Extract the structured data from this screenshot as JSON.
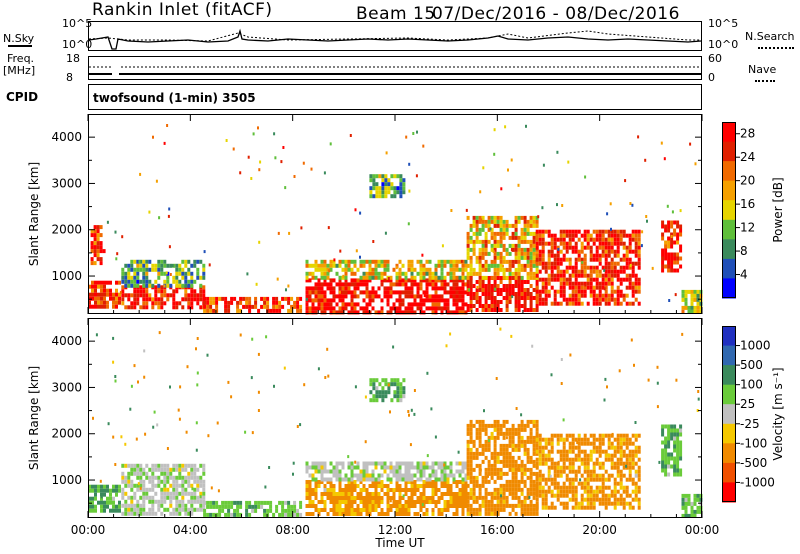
{
  "header": {
    "site": "Rankin Inlet (fitACF)",
    "beam": "Beam 15",
    "dates": "07/Dec/2016 - 08/Dec/2016"
  },
  "noise_panel": {
    "left_label": "N.Sky",
    "right_label": "N.Search",
    "left_ticks": [
      "10^5",
      "10^0"
    ],
    "right_ticks": [
      "10^5",
      "10^0"
    ]
  },
  "freq_panel": {
    "left_label_top": "Freq.",
    "left_label_unit": "[MHz]",
    "right_label": "Nave",
    "left_ticks": [
      "18",
      "8"
    ],
    "right_ticks": [
      "60",
      "0"
    ]
  },
  "cpid": {
    "label": "CPID",
    "program": "twofsound (1-min) 3505"
  },
  "colors": {
    "power_scale": [
      "#0000ff",
      "#1f4fb8",
      "#3a8a5c",
      "#5fbf3a",
      "#e6d400",
      "#f5a000",
      "#f06a00",
      "#e02000",
      "#ff0000"
    ],
    "velocity_scale": [
      "#2030c0",
      "#3068b0",
      "#3a8a5c",
      "#6acb3a",
      "#c0c0c0",
      "#f5c800",
      "#f08a00",
      "#f05000",
      "#ff0000"
    ]
  },
  "chart_data": [
    {
      "type": "heatmap",
      "name": "power",
      "ylabel": "Slant Range [km]",
      "xlabel": "",
      "xticks": [
        "00:00",
        "04:00",
        "08:00",
        "12:00",
        "16:00",
        "20:00",
        "00:00"
      ],
      "yticks": [
        1000,
        2000,
        3000,
        4000
      ],
      "ylim": [
        180,
        4500
      ],
      "xlim": [
        "00:00",
        "24:00"
      ],
      "colorbar": {
        "label": "Power [dB]",
        "ticks": [
          4,
          8,
          12,
          16,
          20,
          24,
          28
        ],
        "range": [
          0,
          30
        ]
      },
      "regions": [
        {
          "t0": 0.0,
          "t1": 1.2,
          "r0": 350,
          "r1": 900,
          "v": 26
        },
        {
          "t0": 0.1,
          "t1": 0.6,
          "r0": 1300,
          "r1": 2100,
          "v": 24
        },
        {
          "t0": 1.3,
          "t1": 4.5,
          "r0": 300,
          "r1": 800,
          "v": 26
        },
        {
          "t0": 1.3,
          "t1": 4.5,
          "r0": 800,
          "r1": 1350,
          "v": 10
        },
        {
          "t0": 4.5,
          "t1": 8.3,
          "r0": 250,
          "r1": 550,
          "v": 24
        },
        {
          "t0": 8.5,
          "t1": 14.8,
          "r0": 250,
          "r1": 950,
          "v": 28
        },
        {
          "t0": 8.5,
          "t1": 14.8,
          "r0": 950,
          "r1": 1350,
          "v": 16
        },
        {
          "t0": 11.0,
          "t1": 12.3,
          "r0": 2750,
          "r1": 3200,
          "v": 10
        },
        {
          "t0": 14.8,
          "t1": 17.5,
          "r0": 300,
          "r1": 1000,
          "v": 28
        },
        {
          "t0": 14.8,
          "t1": 17.5,
          "r0": 1000,
          "r1": 2300,
          "v": 18
        },
        {
          "t0": 17.5,
          "t1": 21.6,
          "r0": 400,
          "r1": 2000,
          "v": 26
        },
        {
          "t0": 22.4,
          "t1": 23.2,
          "r0": 1100,
          "r1": 2200,
          "v": 26
        },
        {
          "t0": 23.2,
          "t1": 24.0,
          "r0": 250,
          "r1": 700,
          "v": 14
        }
      ]
    },
    {
      "type": "heatmap",
      "name": "velocity",
      "ylabel": "Slant Range [km]",
      "xlabel": "Time UT",
      "xticks": [
        "00:00",
        "04:00",
        "08:00",
        "12:00",
        "16:00",
        "20:00",
        "00:00"
      ],
      "yticks": [
        1000,
        2000,
        3000,
        4000
      ],
      "ylim": [
        180,
        4500
      ],
      "xlim": [
        "00:00",
        "24:00"
      ],
      "colorbar": {
        "label": "Velocity [m s^-1]",
        "ticks": [
          1000,
          500,
          100,
          25,
          -25,
          -100,
          -500,
          -1000
        ]
      },
      "regions": [
        {
          "t0": 0.0,
          "t1": 1.2,
          "r0": 350,
          "r1": 900,
          "v": 100
        },
        {
          "t0": 1.3,
          "t1": 4.5,
          "r0": 300,
          "r1": 1350,
          "v": 10
        },
        {
          "t0": 4.5,
          "t1": 8.3,
          "r0": 250,
          "r1": 550,
          "v": 60
        },
        {
          "t0": 8.5,
          "t1": 14.8,
          "r0": 300,
          "r1": 1000,
          "v": -150
        },
        {
          "t0": 8.5,
          "t1": 14.8,
          "r0": 1000,
          "r1": 1400,
          "v": 10
        },
        {
          "t0": 11.0,
          "t1": 12.3,
          "r0": 2750,
          "r1": 3200,
          "v": 80
        },
        {
          "t0": 14.8,
          "t1": 17.5,
          "r0": 300,
          "r1": 2300,
          "v": -200
        },
        {
          "t0": 17.5,
          "t1": 21.6,
          "r0": 400,
          "r1": 2000,
          "v": -150
        },
        {
          "t0": 22.4,
          "t1": 23.2,
          "r0": 1100,
          "r1": 2200,
          "v": 80
        },
        {
          "t0": 23.2,
          "t1": 24.0,
          "r0": 250,
          "r1": 700,
          "v": 60
        }
      ]
    }
  ]
}
